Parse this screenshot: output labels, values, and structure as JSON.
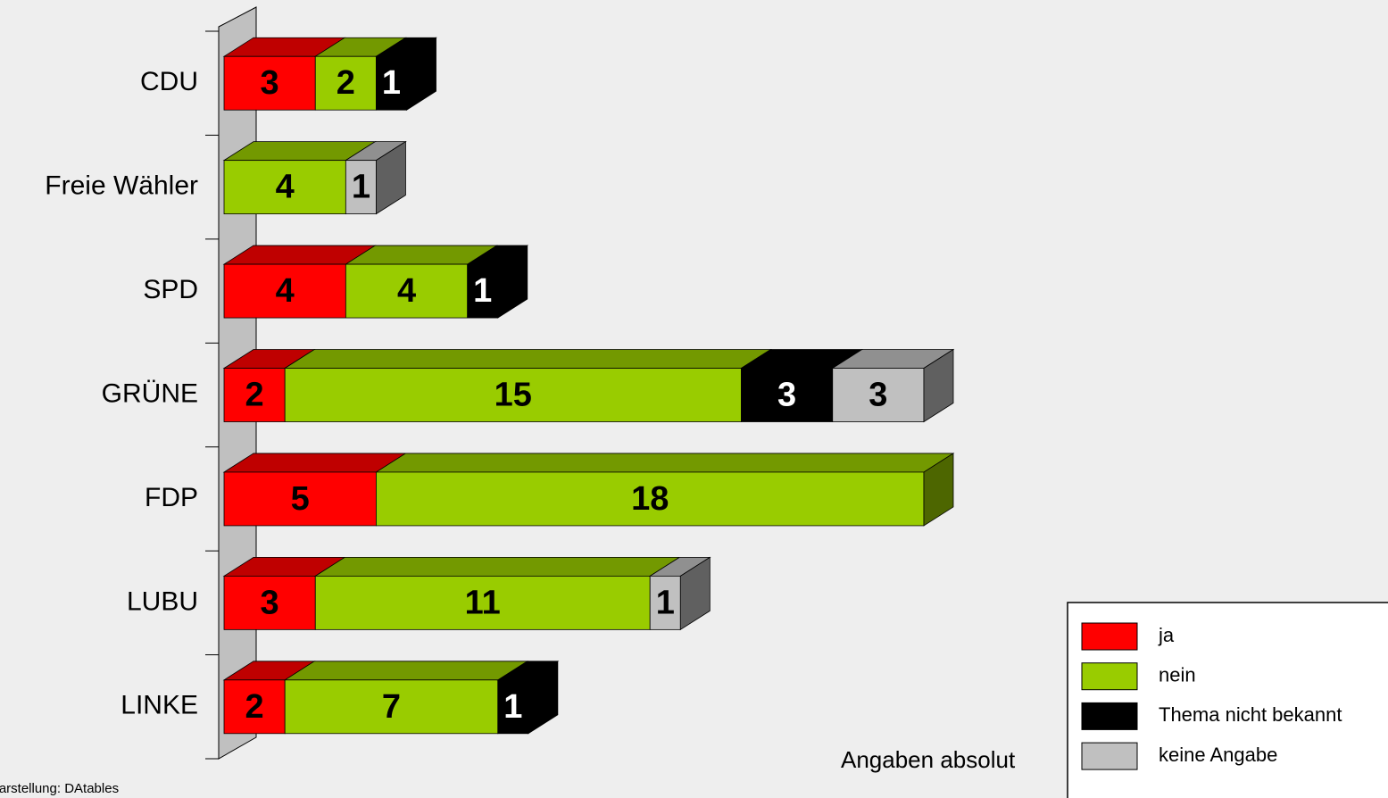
{
  "chart_data": {
    "type": "bar3d_stacked_horizontal",
    "categories": [
      "CDU",
      "Freie Wähler",
      "SPD",
      "GRÜNE",
      "FDP",
      "LUBU",
      "LINKE"
    ],
    "series": [
      {
        "name": "ja",
        "color": "#ff0000",
        "values": [
          3,
          null,
          4,
          2,
          5,
          3,
          2
        ]
      },
      {
        "name": "nein",
        "color": "#99cc00",
        "values": [
          2,
          4,
          4,
          15,
          18,
          11,
          7
        ]
      },
      {
        "name": "Thema nicht bekannt",
        "color": "#000000",
        "values": [
          1,
          null,
          1,
          3,
          null,
          null,
          1
        ]
      },
      {
        "name": "keine Angabe",
        "color": "#c0c0c0",
        "values": [
          null,
          1,
          null,
          3,
          null,
          1,
          null
        ]
      }
    ],
    "note": "Angaben absolut",
    "source": "Darstellung: DAtables",
    "legend": "bottom-right"
  }
}
